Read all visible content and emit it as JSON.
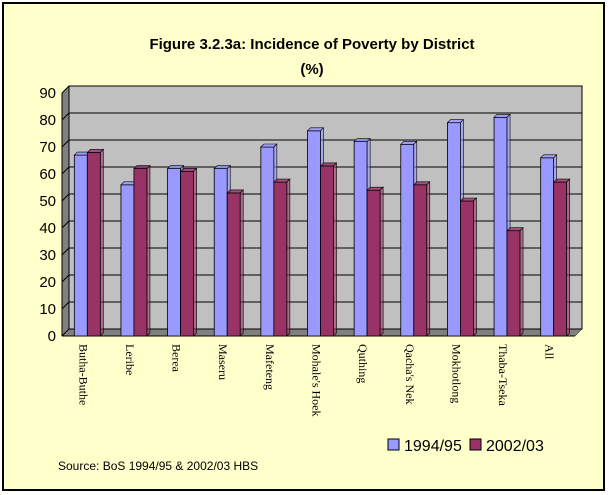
{
  "chart_data": {
    "type": "bar",
    "title": "Figure 3.2.3a: Incidence of Poverty by District",
    "subtitle": "(%)",
    "categories": [
      "Butha-Buthe",
      "Leribe",
      "Berea",
      "Maseru",
      "Mafeteng",
      "Mohale's Hoek",
      "Quthing",
      "Qacha's Nek",
      "Mokhotlong",
      "Thaba-Tseka",
      "All"
    ],
    "series": [
      {
        "name": "1994/95",
        "color": "#9999FF",
        "values": [
          67,
          56,
          62,
          62,
          70,
          76,
          72,
          71,
          79,
          81,
          66
        ]
      },
      {
        "name": "2002/03",
        "color": "#993366",
        "values": [
          68,
          62,
          61,
          53,
          57,
          63,
          54,
          56,
          50,
          39,
          57
        ]
      }
    ],
    "ylim": [
      0,
      90
    ],
    "yticks": [
      0,
      10,
      20,
      30,
      40,
      50,
      60,
      70,
      80,
      90
    ],
    "grid": true,
    "plot_background": "#C0C0C0",
    "legend_position": "bottom-right",
    "source": "Source: BoS 1994/95 & 2002/03 HBS"
  }
}
